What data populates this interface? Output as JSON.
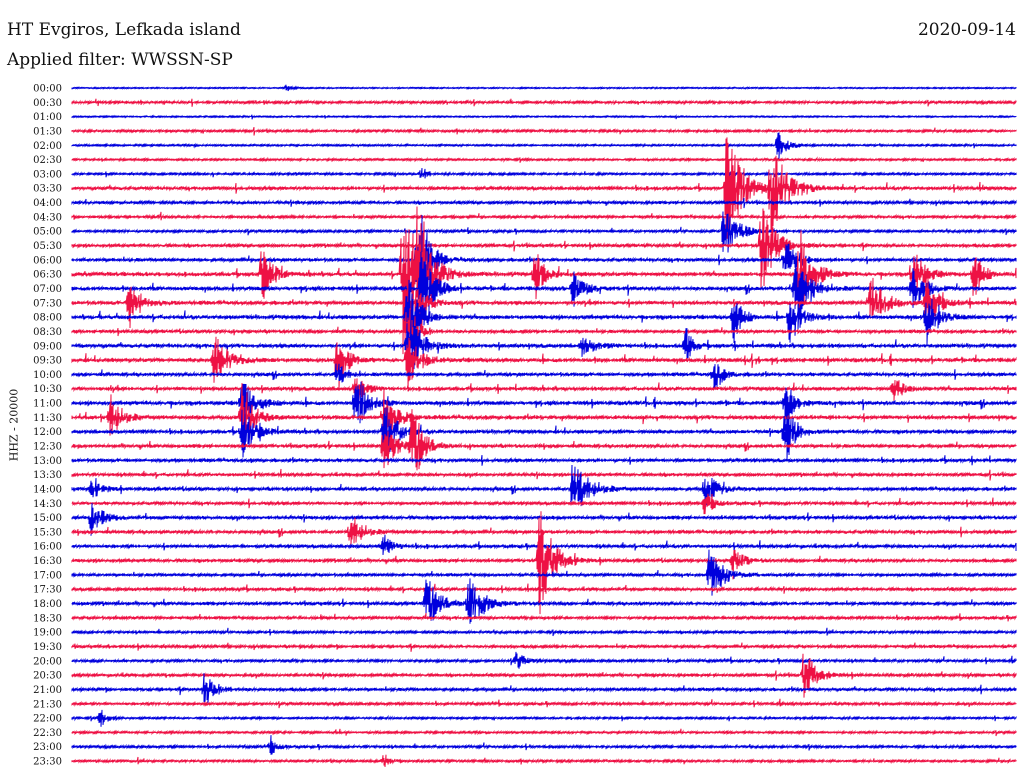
{
  "header": {
    "station": "HT Evgiros, Lefkada island",
    "date": "2020-09-14",
    "filter": "Applied filter: WWSSN-SP"
  },
  "chart_data": {
    "type": "line",
    "chart_kind": "helicorder seismogram",
    "ylabel": "HHZ - 20000",
    "row_labels": [
      "00:00",
      "00:30",
      "01:00",
      "01:30",
      "02:00",
      "02:30",
      "03:00",
      "03:30",
      "04:00",
      "04:30",
      "05:00",
      "05:30",
      "06:00",
      "06:30",
      "07:00",
      "07:30",
      "08:00",
      "08:30",
      "09:00",
      "09:30",
      "10:00",
      "10:30",
      "11:00",
      "11:30",
      "12:00",
      "12:30",
      "13:00",
      "13:30",
      "14:00",
      "14:30",
      "15:00",
      "15:30",
      "16:00",
      "16:30",
      "17:00",
      "17:30",
      "18:00",
      "18:30",
      "19:00",
      "19:30",
      "20:00",
      "20:30",
      "21:00",
      "21:30",
      "22:00",
      "22:30",
      "23:00",
      "23:30"
    ],
    "trace_colors": [
      "#0000dd",
      "#ee1144"
    ],
    "x_range": [
      0,
      1
    ],
    "noise_level": [
      0.0,
      0.35,
      0.05,
      0.3,
      0.15,
      0.2,
      0.25,
      0.6,
      0.45,
      0.4,
      0.35,
      0.5,
      0.6,
      0.75,
      0.75,
      0.7,
      0.75,
      0.55,
      0.7,
      0.8,
      0.6,
      0.65,
      0.75,
      0.75,
      0.65,
      0.6,
      0.6,
      0.5,
      0.6,
      0.5,
      0.6,
      0.6,
      0.55,
      0.55,
      0.45,
      0.5,
      0.55,
      0.45,
      0.35,
      0.45,
      0.4,
      0.45,
      0.5,
      0.4,
      0.2,
      0.25,
      0.35,
      0.3
    ],
    "events": [
      [
        0,
        0.227,
        3,
        6
      ],
      [
        4,
        0.748,
        7,
        22
      ],
      [
        6,
        0.37,
        5,
        10
      ],
      [
        7,
        0.693,
        14,
        60
      ],
      [
        7,
        0.74,
        14,
        50
      ],
      [
        10,
        0.69,
        12,
        30
      ],
      [
        11,
        0.73,
        12,
        50
      ],
      [
        12,
        0.365,
        10,
        40
      ],
      [
        12,
        0.37,
        8,
        30
      ],
      [
        12,
        0.755,
        10,
        30
      ],
      [
        13,
        0.2,
        10,
        28
      ],
      [
        13,
        0.35,
        14,
        90
      ],
      [
        13,
        0.365,
        10,
        60
      ],
      [
        13,
        0.49,
        8,
        30
      ],
      [
        13,
        0.77,
        12,
        50
      ],
      [
        13,
        0.89,
        10,
        30
      ],
      [
        13,
        0.955,
        8,
        30
      ],
      [
        14,
        0.37,
        10,
        50
      ],
      [
        14,
        0.53,
        10,
        20
      ],
      [
        14,
        0.765,
        12,
        40
      ],
      [
        14,
        0.89,
        10,
        30
      ],
      [
        15,
        0.06,
        10,
        28
      ],
      [
        15,
        0.355,
        12,
        30
      ],
      [
        15,
        0.845,
        12,
        32
      ],
      [
        15,
        0.905,
        10,
        30
      ],
      [
        16,
        0.355,
        10,
        50
      ],
      [
        16,
        0.7,
        8,
        30
      ],
      [
        16,
        0.76,
        10,
        30
      ],
      [
        16,
        0.905,
        10,
        30
      ],
      [
        17,
        0.355,
        8,
        40
      ],
      [
        18,
        0.355,
        12,
        40
      ],
      [
        18,
        0.54,
        12,
        10
      ],
      [
        18,
        0.65,
        6,
        20
      ],
      [
        19,
        0.15,
        12,
        30
      ],
      [
        19,
        0.28,
        8,
        40
      ],
      [
        19,
        0.355,
        10,
        30
      ],
      [
        20,
        0.28,
        8,
        14
      ],
      [
        20,
        0.68,
        8,
        20
      ],
      [
        21,
        0.3,
        8,
        18
      ],
      [
        21,
        0.87,
        10,
        12
      ],
      [
        22,
        0.18,
        12,
        28
      ],
      [
        22,
        0.3,
        10,
        36
      ],
      [
        22,
        0.755,
        8,
        30
      ],
      [
        23,
        0.04,
        10,
        24
      ],
      [
        23,
        0.18,
        10,
        36
      ],
      [
        23,
        0.33,
        10,
        40
      ],
      [
        24,
        0.18,
        10,
        30
      ],
      [
        24,
        0.33,
        10,
        40
      ],
      [
        24,
        0.755,
        8,
        40
      ],
      [
        25,
        0.33,
        10,
        30
      ],
      [
        25,
        0.36,
        10,
        46
      ],
      [
        28,
        0.02,
        10,
        10
      ],
      [
        28,
        0.53,
        14,
        30
      ],
      [
        28,
        0.67,
        10,
        22
      ],
      [
        29,
        0.67,
        8,
        14
      ],
      [
        30,
        0.02,
        10,
        18
      ],
      [
        31,
        0.295,
        10,
        20
      ],
      [
        32,
        0.33,
        8,
        12
      ],
      [
        33,
        0.495,
        12,
        56
      ],
      [
        33,
        0.7,
        8,
        18
      ],
      [
        34,
        0.675,
        12,
        30
      ],
      [
        36,
        0.375,
        12,
        30
      ],
      [
        36,
        0.42,
        12,
        30
      ],
      [
        40,
        0.47,
        8,
        10
      ],
      [
        41,
        0.775,
        10,
        30
      ],
      [
        42,
        0.14,
        10,
        18
      ],
      [
        44,
        0.03,
        6,
        10
      ],
      [
        46,
        0.21,
        6,
        10
      ],
      [
        47,
        0.33,
        6,
        8
      ]
    ]
  }
}
